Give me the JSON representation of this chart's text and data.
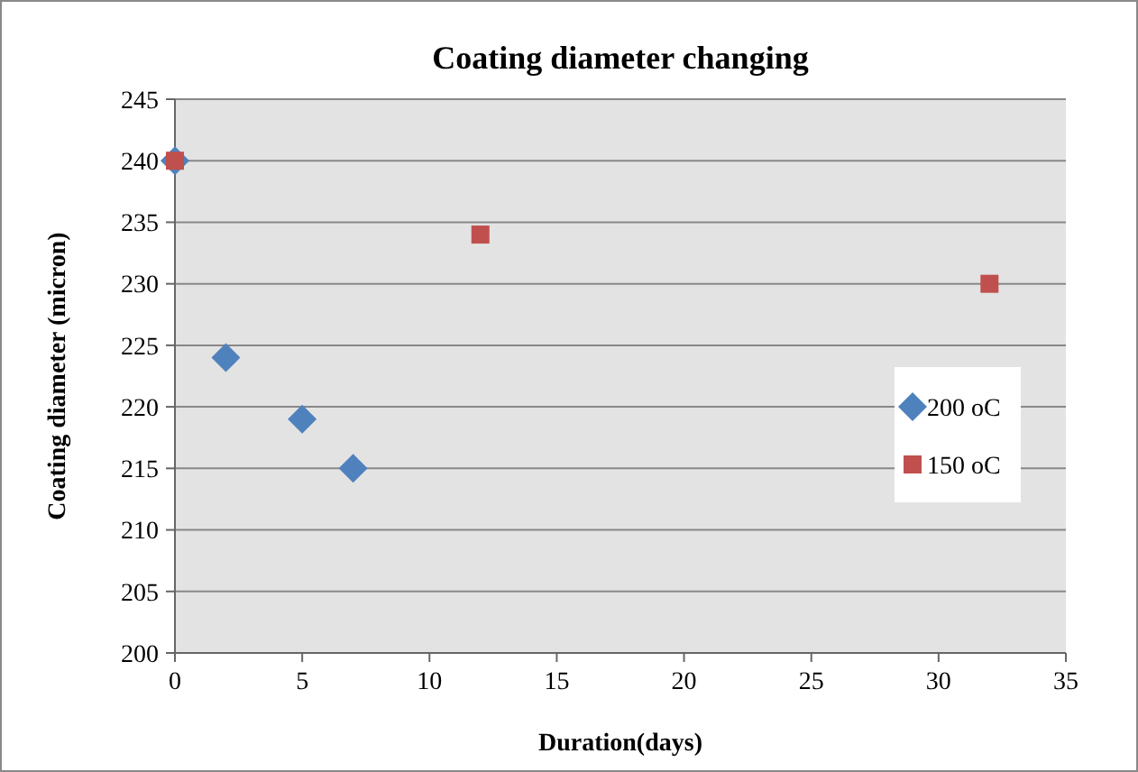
{
  "chart_data": {
    "type": "scatter",
    "title": "Coating diameter changing",
    "xlabel": "Duration(days)",
    "ylabel": "Coating diameter (micron)",
    "xlim": [
      0,
      35
    ],
    "xticks": [
      0,
      5,
      10,
      15,
      20,
      25,
      30,
      35
    ],
    "ylim": [
      200,
      245
    ],
    "yticks": [
      200,
      205,
      210,
      215,
      220,
      225,
      230,
      235,
      240,
      245
    ],
    "grid": "y",
    "legend": "right",
    "series": [
      {
        "name": "200 oC",
        "color": "#4f81bd",
        "marker": "diamond",
        "x": [
          0,
          2,
          5,
          7
        ],
        "values": [
          240,
          224,
          219,
          215
        ]
      },
      {
        "name": "150 oC",
        "color": "#c0504d",
        "marker": "square",
        "x": [
          0,
          12,
          32
        ],
        "values": [
          240,
          234,
          230
        ]
      }
    ]
  }
}
